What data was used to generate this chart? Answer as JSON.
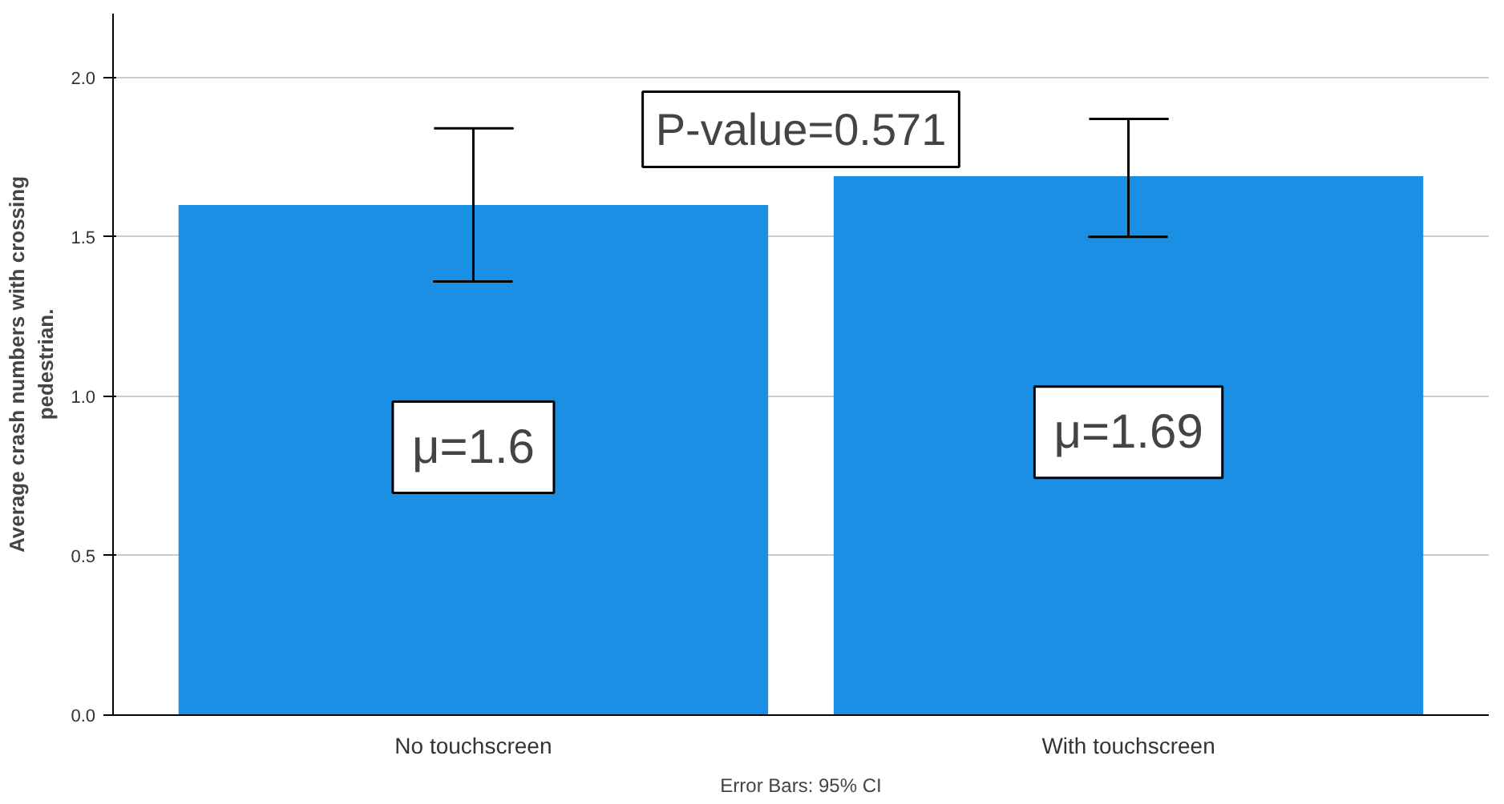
{
  "chart_data": {
    "type": "bar",
    "ylabel": "Average crash numbers with crossing\npedestrian.",
    "categories": [
      "No touchscreen",
      "With touchscreen"
    ],
    "values": [
      1.6,
      1.69
    ],
    "color": "#1a8fe3",
    "errors": [
      [
        1.36,
        1.84
      ],
      [
        1.5,
        1.87
      ]
    ],
    "value_labels": [
      "μ=1.6",
      "μ=1.69"
    ],
    "ylim": [
      0,
      2.2
    ],
    "yticks": [
      {
        "value": 0,
        "label": "0.0"
      },
      {
        "value": 0.5,
        "label": "0.5"
      },
      {
        "value": 1,
        "label": "1.0"
      },
      {
        "value": 1.5,
        "label": "1.5"
      },
      {
        "value": 2,
        "label": "2.0"
      }
    ],
    "grid": "y",
    "annotations": [
      "P-value=0.571",
      "Error Bars: 95% CI"
    ]
  }
}
